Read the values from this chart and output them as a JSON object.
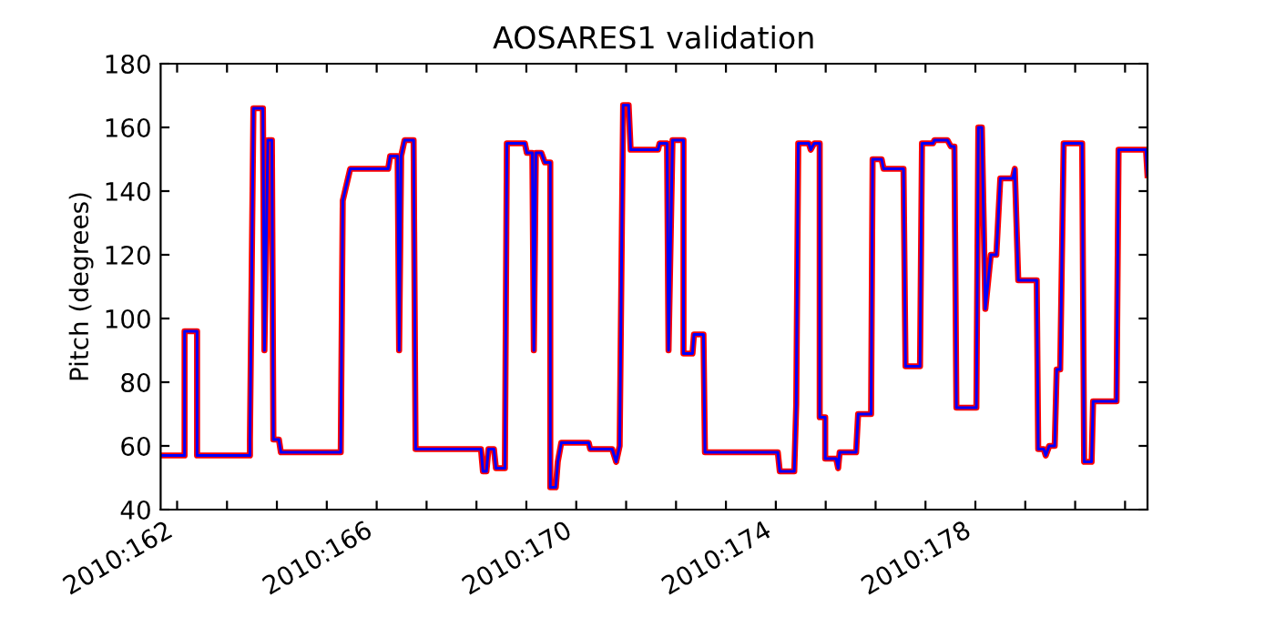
{
  "chart_data": {
    "type": "line",
    "title": "AOSARES1 validation",
    "ylabel": "Pitch (degrees)",
    "x": [
      "2010-06-10T16:05",
      "2010-06-11T03:36",
      "2010-06-11T03:36",
      "2010-06-11T09:36",
      "2010-06-11T09:36",
      "2010-06-12T11:02",
      "2010-06-12T11:02",
      "2010-06-12T12:43",
      "2010-06-12T17:17",
      "2010-06-12T18:00",
      "2010-06-12T19:41",
      "2010-06-12T21:36",
      "2010-06-12T22:19",
      "2010-06-13T00:58",
      "2010-06-13T01:55",
      "2010-06-14T06:43",
      "2010-06-14T07:41",
      "2010-06-14T11:17",
      "2010-06-15T05:31",
      "2010-06-15T06:29",
      "2010-06-15T10:05",
      "2010-06-15T10:48",
      "2010-06-15T11:46",
      "2010-06-15T13:26",
      "2010-06-15T17:46",
      "2010-06-15T18:43",
      "2010-06-17T02:10",
      "2010-06-17T03:07",
      "2010-06-17T04:48",
      "2010-06-17T05:46",
      "2010-06-17T08:24",
      "2010-06-17T09:22",
      "2010-06-17T13:41",
      "2010-06-17T14:38",
      "2010-06-17T23:17",
      "2010-06-18T00:14",
      "2010-06-18T02:53",
      "2010-06-18T03:36",
      "2010-06-18T04:34",
      "2010-06-18T07:12",
      "2010-06-18T08:53",
      "2010-06-18T11:31",
      "2010-06-18T11:31",
      "2010-06-18T14:10",
      "2010-06-18T15:07",
      "2010-06-18T16:48",
      "2010-06-19T06:00",
      "2010-06-19T06:43",
      "2010-06-19T17:17",
      "2010-06-19T19:12",
      "2010-06-19T20:53",
      "2010-06-19T22:34",
      "2010-06-20T01:12",
      "2010-06-20T02:10",
      "2010-06-20T15:22",
      "2010-06-20T16:05",
      "2010-06-20T19:41",
      "2010-06-20T20:24",
      "2010-06-20T22:19",
      "2010-06-21T03:36",
      "2010-06-21T03:36",
      "2010-06-21T07:55",
      "2010-06-21T08:38",
      "2010-06-21T13:12",
      "2010-06-21T13:55",
      "2010-06-23T00:58",
      "2010-06-23T01:55",
      "2010-06-23T08:53",
      "2010-06-23T09:50",
      "2010-06-23T10:48",
      "2010-06-23T15:50",
      "2010-06-23T16:48",
      "2010-06-23T18:29",
      "2010-06-23T21:07",
      "2010-06-23T21:07",
      "2010-06-23T23:46",
      "2010-06-23T23:46",
      "2010-06-24T05:02",
      "2010-06-24T06:00",
      "2010-06-24T06:43",
      "2010-06-24T14:38",
      "2010-06-24T15:36",
      "2010-06-24T21:50",
      "2010-06-24T22:34",
      "2010-06-25T02:53",
      "2010-06-25T03:50",
      "2010-06-25T13:26",
      "2010-06-25T14:24",
      "2010-06-25T21:22",
      "2010-06-25T22:19",
      "2010-06-26T03:36",
      "2010-06-26T04:19",
      "2010-06-26T10:34",
      "2010-06-26T12:14",
      "2010-06-26T13:55",
      "2010-06-26T14:53",
      "2010-06-27T00:29",
      "2010-06-27T01:26",
      "2010-06-27T03:07",
      "2010-06-27T04:48",
      "2010-06-27T07:26",
      "2010-06-27T10:05",
      "2010-06-27T12:00",
      "2010-06-27T18:00",
      "2010-06-27T18:58",
      "2010-06-27T20:38",
      "2010-06-28T05:31",
      "2010-06-28T06:14",
      "2010-06-28T08:53",
      "2010-06-28T09:50",
      "2010-06-28T11:31",
      "2010-06-28T14:10",
      "2010-06-28T15:07",
      "2010-06-28T16:48",
      "2010-06-28T18:29",
      "2010-06-29T03:22",
      "2010-06-29T04:19",
      "2010-06-29T07:55",
      "2010-06-29T08:38",
      "2010-06-29T19:55",
      "2010-06-29T20:53",
      "2010-06-30T10:05",
      "2010-06-30T10:48"
    ],
    "series": [
      {
        "color": "#ff0000",
        "values": [
          57,
          57,
          96,
          96,
          57,
          57,
          62,
          166,
          166,
          90,
          156,
          156,
          62,
          62,
          58,
          58,
          137,
          147,
          147,
          151,
          151,
          90,
          151,
          156,
          156,
          59,
          59,
          52,
          52,
          59,
          59,
          53,
          53,
          155,
          155,
          152,
          152,
          90,
          152,
          152,
          149,
          149,
          47,
          47,
          55,
          61,
          61,
          59,
          59,
          55,
          60,
          167,
          167,
          153,
          153,
          155,
          155,
          90,
          156,
          156,
          89,
          89,
          95,
          95,
          58,
          58,
          52,
          52,
          73,
          155,
          155,
          153,
          155,
          155,
          69,
          69,
          56,
          56,
          53,
          58,
          58,
          70,
          70,
          150,
          150,
          147,
          147,
          85,
          85,
          155,
          155,
          156,
          156,
          154,
          154,
          72,
          72,
          160,
          160,
          103,
          120,
          120,
          144,
          144,
          147,
          112,
          112,
          59,
          59,
          57,
          60,
          60,
          84,
          84,
          155,
          155,
          55,
          55,
          74,
          74,
          153,
          153,
          145
        ]
      },
      {
        "color": "#0000ff",
        "values": [
          57,
          57,
          96,
          96,
          57,
          57,
          62,
          166,
          166,
          90,
          156,
          156,
          62,
          62,
          58,
          58,
          137,
          147,
          147,
          151,
          151,
          90,
          151,
          156,
          156,
          59,
          59,
          52,
          52,
          59,
          59,
          53,
          53,
          155,
          155,
          152,
          152,
          90,
          152,
          152,
          149,
          149,
          47,
          47,
          55,
          61,
          61,
          59,
          59,
          55,
          60,
          167,
          167,
          153,
          153,
          155,
          155,
          90,
          156,
          156,
          89,
          89,
          95,
          95,
          58,
          58,
          52,
          52,
          73,
          155,
          155,
          153,
          155,
          155,
          69,
          69,
          56,
          56,
          53,
          58,
          58,
          70,
          70,
          150,
          150,
          147,
          147,
          85,
          85,
          155,
          155,
          156,
          156,
          154,
          154,
          72,
          72,
          160,
          160,
          103,
          120,
          120,
          144,
          144,
          147,
          112,
          112,
          59,
          59,
          57,
          60,
          60,
          84,
          84,
          155,
          155,
          55,
          55,
          74,
          74,
          153,
          153,
          145
        ]
      }
    ],
    "xlim": [
      "2010-06-10T16:05",
      "2010-06-30T10:48"
    ],
    "xticks": [
      {
        "value": "2010-06-11",
        "label": "2010:162"
      },
      {
        "value": "2010-06-12",
        "label": null
      },
      {
        "value": "2010-06-13",
        "label": null
      },
      {
        "value": "2010-06-14",
        "label": null
      },
      {
        "value": "2010-06-15",
        "label": "2010:166"
      },
      {
        "value": "2010-06-16",
        "label": null
      },
      {
        "value": "2010-06-17",
        "label": null
      },
      {
        "value": "2010-06-18",
        "label": null
      },
      {
        "value": "2010-06-19",
        "label": "2010:170"
      },
      {
        "value": "2010-06-20",
        "label": null
      },
      {
        "value": "2010-06-21",
        "label": null
      },
      {
        "value": "2010-06-22",
        "label": null
      },
      {
        "value": "2010-06-23",
        "label": "2010:174"
      },
      {
        "value": "2010-06-24",
        "label": null
      },
      {
        "value": "2010-06-25",
        "label": null
      },
      {
        "value": "2010-06-26",
        "label": null
      },
      {
        "value": "2010-06-27",
        "label": "2010:178"
      },
      {
        "value": "2010-06-28",
        "label": null
      },
      {
        "value": "2010-06-29",
        "label": null
      },
      {
        "value": "2010-06-30",
        "label": null
      }
    ],
    "ylim": [
      40,
      180
    ],
    "yticks": [
      40,
      60,
      80,
      100,
      120,
      140,
      160,
      180
    ],
    "grid": false,
    "legend": false,
    "marker": "none",
    "line_style": "solid"
  }
}
